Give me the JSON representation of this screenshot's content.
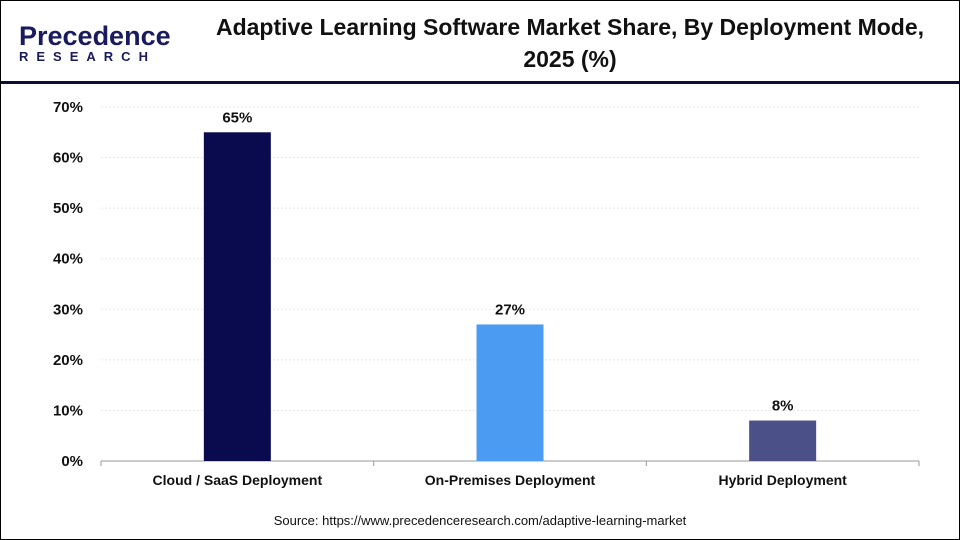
{
  "logo": {
    "line1": "Precedence",
    "line2": "RESEARCH"
  },
  "title": "Adaptive Learning Software Market Share, By Deployment Mode, 2025 (%)",
  "source": "Source: https://www.precedenceresearch.com/adaptive-learning-market",
  "chart_data": {
    "type": "bar",
    "title": "Adaptive Learning Software Market Share, By Deployment Mode, 2025 (%)",
    "categories": [
      "Cloud / SaaS Deployment",
      "On-Premises Deployment",
      "Hybrid Deployment"
    ],
    "values": [
      65,
      27,
      8
    ],
    "data_labels": [
      "65%",
      "27%",
      "8%"
    ],
    "colors": [
      "#0a0a4f",
      "#4b9bf2",
      "#4b5089"
    ],
    "ylim": [
      0,
      70
    ],
    "yticks": [
      "0%",
      "10%",
      "20%",
      "30%",
      "40%",
      "50%",
      "60%",
      "70%"
    ],
    "xlabel": "",
    "ylabel": "",
    "grid": true
  }
}
